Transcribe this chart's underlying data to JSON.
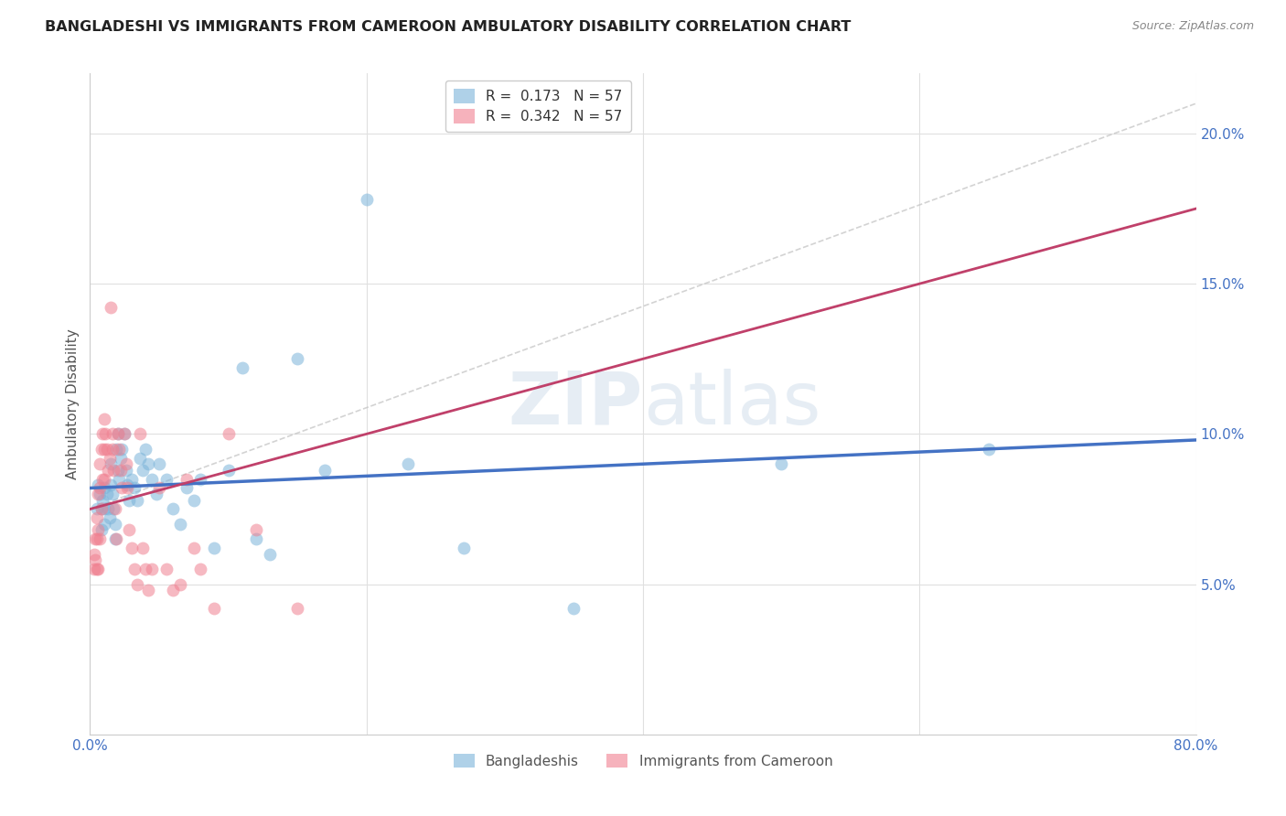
{
  "title": "BANGLADESHI VS IMMIGRANTS FROM CAMEROON AMBULATORY DISABILITY CORRELATION CHART",
  "source": "Source: ZipAtlas.com",
  "ylabel": "Ambulatory Disability",
  "xlim": [
    0,
    0.8
  ],
  "ylim": [
    0,
    0.22
  ],
  "series1_label": "Bangladeshis",
  "series2_label": "Immigrants from Cameroon",
  "series1_color": "#7ab3d9",
  "series2_color": "#f08090",
  "trendline1_color": "#4472c4",
  "trendline2_color": "#c0406a",
  "ref_line_color": "#c8c8c8",
  "tick_label_color": "#4472c4",
  "title_color": "#222222",
  "source_color": "#888888",
  "ylabel_color": "#555555",
  "watermark_color": "#c8d8e8",
  "bg_color": "#ffffff",
  "grid_color": "#e0e0e0",
  "legend_r1_label": "R = ",
  "legend_r1_val": "0.173",
  "legend_n1_label": "N = ",
  "legend_n1_val": "57",
  "legend_r2_val": "0.342",
  "legend_n2_val": "57",
  "bangladeshis_x": [
    0.005,
    0.006,
    0.007,
    0.008,
    0.008,
    0.009,
    0.01,
    0.01,
    0.01,
    0.012,
    0.013,
    0.014,
    0.015,
    0.015,
    0.016,
    0.017,
    0.018,
    0.018,
    0.019,
    0.02,
    0.02,
    0.021,
    0.022,
    0.023,
    0.025,
    0.026,
    0.027,
    0.028,
    0.03,
    0.032,
    0.034,
    0.036,
    0.038,
    0.04,
    0.042,
    0.045,
    0.048,
    0.05,
    0.055,
    0.06,
    0.065,
    0.07,
    0.075,
    0.08,
    0.09,
    0.1,
    0.11,
    0.12,
    0.13,
    0.15,
    0.17,
    0.2,
    0.23,
    0.27,
    0.35,
    0.5,
    0.65
  ],
  "bangladeshis_y": [
    0.075,
    0.083,
    0.08,
    0.075,
    0.068,
    0.078,
    0.082,
    0.075,
    0.07,
    0.08,
    0.075,
    0.072,
    0.09,
    0.083,
    0.08,
    0.075,
    0.07,
    0.065,
    0.095,
    0.1,
    0.088,
    0.085,
    0.092,
    0.095,
    0.1,
    0.088,
    0.083,
    0.078,
    0.085,
    0.082,
    0.078,
    0.092,
    0.088,
    0.095,
    0.09,
    0.085,
    0.08,
    0.09,
    0.085,
    0.075,
    0.07,
    0.082,
    0.078,
    0.085,
    0.062,
    0.088,
    0.122,
    0.065,
    0.06,
    0.125,
    0.088,
    0.178,
    0.09,
    0.062,
    0.042,
    0.09,
    0.095
  ],
  "cameroon_x": [
    0.003,
    0.003,
    0.004,
    0.004,
    0.005,
    0.005,
    0.005,
    0.006,
    0.006,
    0.006,
    0.007,
    0.007,
    0.007,
    0.008,
    0.008,
    0.009,
    0.009,
    0.01,
    0.01,
    0.01,
    0.011,
    0.012,
    0.013,
    0.014,
    0.015,
    0.016,
    0.016,
    0.017,
    0.018,
    0.019,
    0.02,
    0.021,
    0.022,
    0.023,
    0.025,
    0.026,
    0.027,
    0.028,
    0.03,
    0.032,
    0.034,
    0.036,
    0.038,
    0.04,
    0.042,
    0.045,
    0.05,
    0.055,
    0.06,
    0.065,
    0.07,
    0.075,
    0.08,
    0.09,
    0.1,
    0.12,
    0.15
  ],
  "cameroon_y": [
    0.06,
    0.055,
    0.065,
    0.058,
    0.072,
    0.065,
    0.055,
    0.08,
    0.068,
    0.055,
    0.09,
    0.082,
    0.065,
    0.095,
    0.075,
    0.1,
    0.085,
    0.105,
    0.095,
    0.085,
    0.1,
    0.095,
    0.088,
    0.092,
    0.142,
    0.1,
    0.095,
    0.088,
    0.075,
    0.065,
    0.1,
    0.095,
    0.088,
    0.082,
    0.1,
    0.09,
    0.082,
    0.068,
    0.062,
    0.055,
    0.05,
    0.1,
    0.062,
    0.055,
    0.048,
    0.055,
    0.082,
    0.055,
    0.048,
    0.05,
    0.085,
    0.062,
    0.055,
    0.042,
    0.1,
    0.068,
    0.042
  ]
}
